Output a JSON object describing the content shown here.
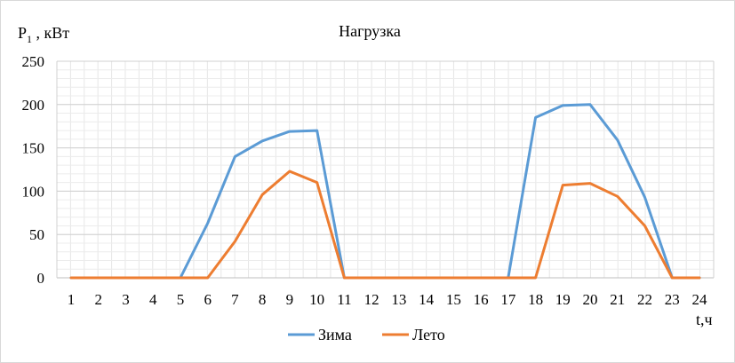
{
  "chart_data": {
    "type": "line",
    "title": "Нагрузка",
    "ylabel_main": "P",
    "ylabel_sub": "1",
    "ylabel_unit": " , кВт",
    "xlabel": "t,ч",
    "ylim": [
      0,
      250
    ],
    "yticks": [
      0,
      50,
      100,
      150,
      200,
      250
    ],
    "grid": true,
    "minor_grid": true,
    "legend_position": "bottom",
    "x": [
      1,
      2,
      3,
      4,
      5,
      6,
      7,
      8,
      9,
      10,
      11,
      12,
      13,
      14,
      15,
      16,
      17,
      18,
      19,
      20,
      21,
      22,
      23,
      24
    ],
    "series": [
      {
        "name": "Зима",
        "color": "#5b9bd5",
        "values": [
          0,
          0,
          0,
          0,
          0,
          63,
          140,
          158,
          169,
          170,
          0,
          0,
          0,
          0,
          0,
          0,
          0,
          185,
          199,
          200,
          159,
          93,
          0,
          0
        ]
      },
      {
        "name": "Лето",
        "color": "#ed7d31",
        "values": [
          0,
          0,
          0,
          0,
          0,
          0,
          42,
          96,
          123,
          110,
          0,
          0,
          0,
          0,
          0,
          0,
          0,
          0,
          107,
          109,
          94,
          60,
          0,
          0
        ]
      }
    ]
  }
}
